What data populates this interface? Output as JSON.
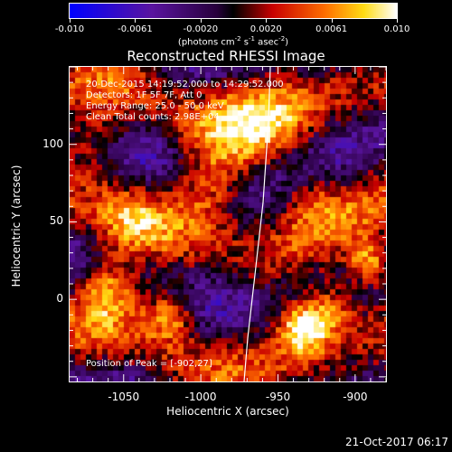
{
  "colorbar": {
    "ticks": [
      "-0.010",
      "-0.0061",
      "-0.0020",
      "0.0020",
      "0.0061",
      "0.010"
    ],
    "units_prefix": "(photons cm",
    "units_exp1": "-2",
    "units_mid1": " s",
    "units_exp2": "-1",
    "units_mid2": " asec",
    "units_exp3": "-2",
    "units_suffix": ")"
  },
  "title": "Reconstructed RHESSI Image",
  "info": {
    "time_range": "20-Dec-2015 14:19:52.000 to 14:29:52.000",
    "detectors": "Detectors: 1F 5F 7F, Att 0",
    "energy": "Energy Range: 25.0 - 50.0 keV",
    "clean": "Clean    Total counts: 2.98E+04"
  },
  "peak": "Position of Peak = [-902,27]",
  "x_axis": {
    "label": "Heliocentric X (arcsec)",
    "ticks": [
      "-1050",
      "-1000",
      "-950",
      "-900"
    ],
    "tick_values": [
      -1050,
      -1000,
      -950,
      -900
    ],
    "range": [
      -1085,
      -880
    ]
  },
  "y_axis": {
    "label": "Heliocentric Y (arcsec)",
    "ticks": [
      "100",
      "50",
      "0"
    ],
    "tick_values": [
      100,
      50,
      0
    ],
    "range": [
      -53,
      150
    ]
  },
  "footer_timestamp": "21-Oct-2017 06:17",
  "colors": {
    "frame": "#ffffff",
    "background": "#000000",
    "limb": "#ffffff"
  }
}
